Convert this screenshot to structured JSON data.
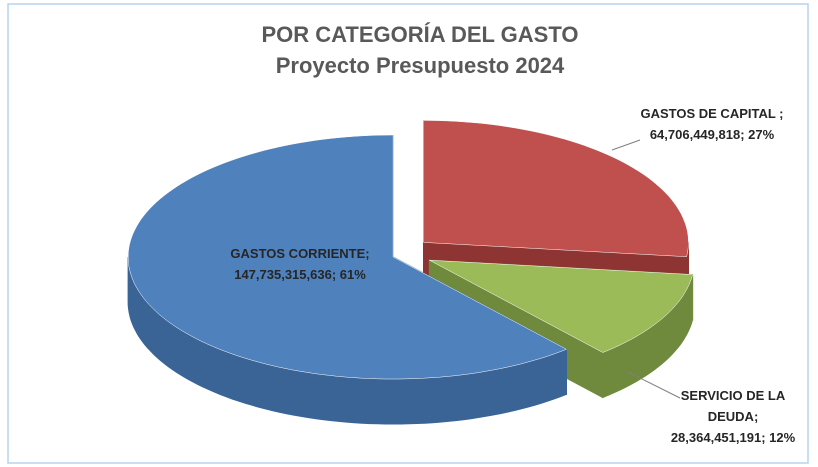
{
  "chart_data": {
    "type": "pie",
    "title": "POR CATEGORÍA DEL GASTO",
    "subtitle": "Proyecto Presupuesto 2024",
    "categories": [
      "GASTOS DE CAPITAL ;",
      "SERVICIO DE LA DEUDA;",
      "GASTOS CORRIENTE;"
    ],
    "values": [
      64706449818,
      28364451191,
      147735315636
    ],
    "value_labels": [
      "64,706,449,818; 27%",
      "28,364,451,191; 12%",
      "147,735,315,636; 61%"
    ],
    "colors": [
      "#c0504d",
      "#9bbb59",
      "#4f81bd"
    ],
    "side_colors": [
      "#8e3533",
      "#6f8a3c",
      "#3a6496"
    ],
    "three_d": true
  }
}
